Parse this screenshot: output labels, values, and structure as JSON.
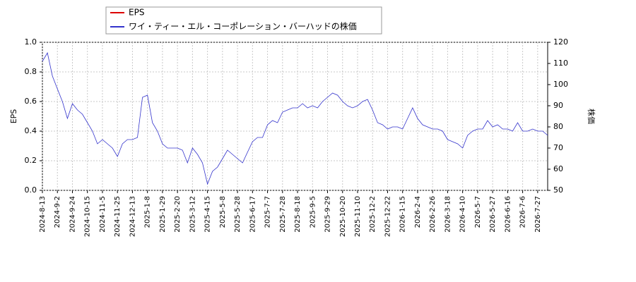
{
  "chart_data": {
    "type": "line",
    "xlabel": null,
    "ylabel": "EPS",
    "y2label": "株価",
    "categories": [
      "2024-8-13",
      null,
      null,
      "2024-9-2",
      null,
      null,
      "2024-9-24",
      null,
      null,
      "2024-10-15",
      null,
      null,
      "2024-11-5",
      null,
      null,
      "2024-11-25",
      null,
      null,
      "2024-12-13",
      null,
      null,
      "2025-1-8",
      null,
      null,
      "2025-1-29",
      null,
      null,
      "2025-2-20",
      null,
      null,
      "2025-3-12",
      null,
      null,
      "2025-4-15",
      null,
      null,
      "2025-5-8",
      null,
      null,
      "2025-5-28",
      null,
      null,
      "2025-6-17",
      null,
      null,
      "2025-7-7",
      null,
      null,
      "2025-7-28",
      null,
      null,
      "2025-8-18",
      null,
      null,
      "2025-9-5",
      null,
      null,
      "2025-9-29",
      null,
      null,
      "2025-10-20",
      null,
      null,
      "2025-11-10",
      null,
      null,
      "2025-12-2",
      null,
      null,
      "2025-12-22",
      null,
      null,
      "2026-1-15",
      null,
      null,
      "2026-2-4",
      null,
      null,
      "2026-2-26",
      null,
      null,
      "2026-3-18",
      null,
      null,
      "2026-4-10",
      null,
      null,
      "2026-5-7",
      null,
      null,
      "2026-5-27",
      null,
      null,
      "2026-6-16",
      null,
      null,
      "2026-7-6",
      null,
      null,
      "2026-7-27",
      null,
      null
    ],
    "series": [
      {
        "name": "EPS",
        "color": "#dd0000",
        "values": [
          null,
          null,
          null,
          null,
          null,
          null,
          null,
          null,
          null,
          null,
          null,
          null,
          null,
          null,
          null,
          null,
          null,
          null,
          null,
          null,
          null,
          null,
          null,
          null,
          null,
          null,
          null,
          null,
          null,
          null,
          null,
          null,
          null,
          null,
          null,
          null,
          null,
          null,
          null,
          null,
          null,
          null,
          null,
          null,
          null,
          null,
          null,
          null,
          null,
          null,
          null,
          null,
          null,
          null,
          null,
          null,
          null,
          null,
          null,
          null,
          null,
          null,
          null,
          null,
          null,
          null,
          null,
          null,
          null,
          null,
          null,
          null,
          null,
          null,
          null,
          null,
          null,
          null,
          null,
          null,
          null,
          null,
          null,
          null,
          null,
          null,
          null,
          null,
          null,
          null,
          null,
          null,
          null,
          null,
          null,
          null,
          null,
          null,
          null,
          null,
          null,
          null
        ]
      },
      {
        "name": "ワイ・ティー・エル・コーポレーション・バーハッドの株価",
        "color": "#3333cc",
        "axis": "y2",
        "values": [
          111,
          115,
          104,
          98,
          92,
          84,
          91,
          88,
          86,
          82,
          78,
          72,
          74,
          72,
          70,
          66,
          72,
          74,
          74,
          75,
          94,
          95,
          82,
          78,
          72,
          70,
          70,
          70,
          69,
          63,
          70,
          67,
          63,
          53,
          59,
          61,
          65,
          69,
          67,
          65,
          63,
          68,
          73,
          75,
          75,
          81,
          83,
          82,
          87,
          88,
          89,
          89,
          91,
          89,
          90,
          89,
          92,
          94,
          96,
          95,
          92,
          90,
          89,
          90,
          92,
          93,
          88,
          82,
          81,
          79,
          80,
          80,
          79,
          84,
          89,
          84,
          81,
          80,
          79,
          79,
          78,
          74,
          73,
          72,
          70,
          76,
          78,
          79,
          79,
          83,
          80,
          81,
          79,
          79,
          78,
          82,
          78,
          78,
          79,
          78,
          78,
          76
        ]
      }
    ],
    "ylim": [
      0,
      1
    ],
    "yticks": [
      {
        "value": 0,
        "label": "0.0"
      },
      {
        "value": 0.2,
        "label": "0.2"
      },
      {
        "value": 0.4,
        "label": "0.4"
      },
      {
        "value": 0.6,
        "label": "0.6"
      },
      {
        "value": 0.8,
        "label": "0.8"
      },
      {
        "value": 1,
        "label": "1.0"
      }
    ],
    "y2lim": [
      50,
      120
    ],
    "y2ticks": [
      50,
      60,
      70,
      80,
      90,
      100,
      110,
      120
    ],
    "grid": true,
    "legend": "top-left"
  }
}
